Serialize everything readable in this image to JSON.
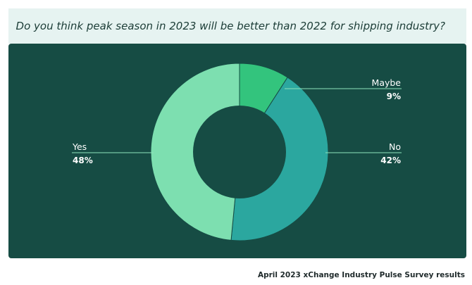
{
  "header": {
    "question": "Do you think peak season in 2023 will be better than 2022 for shipping industry?"
  },
  "footer": {
    "caption": "April 2023 xChange Industry Pulse Survey results"
  },
  "chart_data": {
    "type": "pie",
    "donut": true,
    "title": "Do you think peak season in 2023 will be better than 2022 for shipping industry?",
    "categories": [
      "Maybe",
      "No",
      "Yes"
    ],
    "values": [
      9,
      42,
      48
    ],
    "labels": [
      "9%",
      "42%",
      "48%"
    ],
    "colors": [
      "#33c47d",
      "#2ba79f",
      "#7ddfb0"
    ],
    "background": "#164c44",
    "legend": "none"
  }
}
